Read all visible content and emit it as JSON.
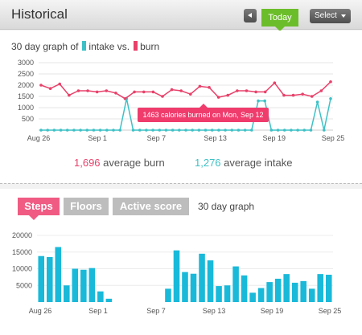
{
  "header": {
    "title": "Historical",
    "today_label": "Today",
    "select_label": "Select"
  },
  "graph_label": {
    "prefix": "30 day graph of",
    "intake": "intake vs.",
    "burn": "burn"
  },
  "colors": {
    "burn": "#e8416a",
    "intake": "#3ec1c6",
    "active_tab": "#f05b83",
    "today": "#6cbd2a",
    "bar": "#19b9d9"
  },
  "summary": {
    "burn_value": "1,696",
    "burn_label": "average burn",
    "intake_value": "1,276",
    "intake_label": "average intake"
  },
  "tooltip": "1463 calories burned on Mon, Sep 12",
  "tabs": [
    {
      "label": "Steps",
      "active": true
    },
    {
      "label": "Floors",
      "active": false
    },
    {
      "label": "Active score",
      "active": false
    }
  ],
  "bottom_graph_label": "30 day graph",
  "chart_data": [
    {
      "type": "line",
      "x_ticks": [
        "Aug 26",
        "Sep 1",
        "Sep 7",
        "Sep 13",
        "Sep 19",
        "Sep 25"
      ],
      "y_ticks": [
        "3000",
        "2500",
        "2000",
        "1500",
        "1000",
        "500"
      ],
      "ylim": [
        0,
        3000
      ],
      "series": [
        {
          "name": "burn",
          "values": [
            2000,
            1850,
            2050,
            1550,
            1750,
            1750,
            1700,
            1750,
            1650,
            1400,
            1700,
            1700,
            1700,
            1500,
            1800,
            1750,
            1600,
            1950,
            1900,
            1463,
            1550,
            1750,
            1750,
            1700,
            1700,
            2100,
            1550,
            1550,
            1600,
            1500,
            1750,
            2150
          ]
        },
        {
          "name": "intake",
          "values": [
            0,
            0,
            0,
            0,
            0,
            0,
            0,
            0,
            0,
            0,
            0,
            0,
            0,
            1400,
            0,
            0,
            0,
            0,
            0,
            0,
            0,
            0,
            0,
            0,
            0,
            0,
            0,
            0,
            0,
            0,
            0,
            0,
            0,
            1300,
            1300,
            0,
            0,
            0,
            0,
            0,
            0,
            0,
            1250,
            0,
            1400
          ]
        }
      ],
      "grid": true
    },
    {
      "type": "bar",
      "x_ticks": [
        "Aug 26",
        "Sep 1",
        "Sep 7",
        "Sep 13",
        "Sep 19",
        "Sep 25"
      ],
      "y_ticks": [
        "20000",
        "15000",
        "10000",
        "5000"
      ],
      "ylim": [
        0,
        20000
      ],
      "series": [
        {
          "name": "Steps",
          "values": [
            13800,
            13500,
            16500,
            5000,
            10000,
            9700,
            10200,
            3200,
            1000,
            0,
            0,
            0,
            0,
            0,
            0,
            4000,
            15500,
            9000,
            8500,
            14500,
            12500,
            4800,
            5000,
            10700,
            8000,
            2800,
            4200,
            6000,
            7000,
            8400,
            5800,
            6300,
            4000,
            8400,
            8200
          ]
        }
      ],
      "grid": true
    }
  ]
}
